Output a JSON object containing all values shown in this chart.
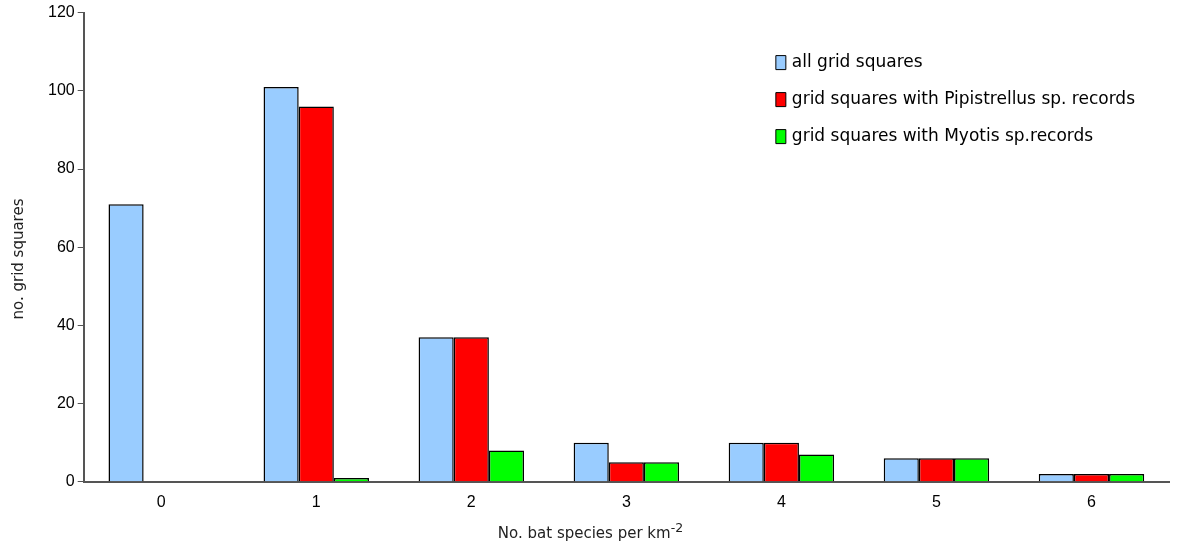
{
  "chart_data": {
    "type": "bar",
    "xlabel": "No. bat species per km$^{-2}$",
    "ylabel": "no. grid squares",
    "categories": [
      "0",
      "1",
      "2",
      "3",
      "4",
      "5",
      "6"
    ],
    "series": [
      {
        "name": "all grid squares",
        "color": "#99ccff",
        "values": [
          71,
          101,
          37,
          10,
          10,
          6,
          2
        ]
      },
      {
        "name": "grid squares with Pipistrellus sp. records",
        "color": "#ff0000",
        "values": [
          0,
          96,
          37,
          5,
          10,
          6,
          2
        ]
      },
      {
        "name": "grid squares with Myotis sp.records",
        "color": "#00ff00",
        "values": [
          0,
          1,
          8,
          5,
          7,
          6,
          2
        ]
      }
    ],
    "ylim": [
      0,
      120
    ],
    "yticks": [
      0,
      20,
      40,
      60,
      80,
      100,
      120
    ],
    "grid": false,
    "legend": "top right"
  }
}
